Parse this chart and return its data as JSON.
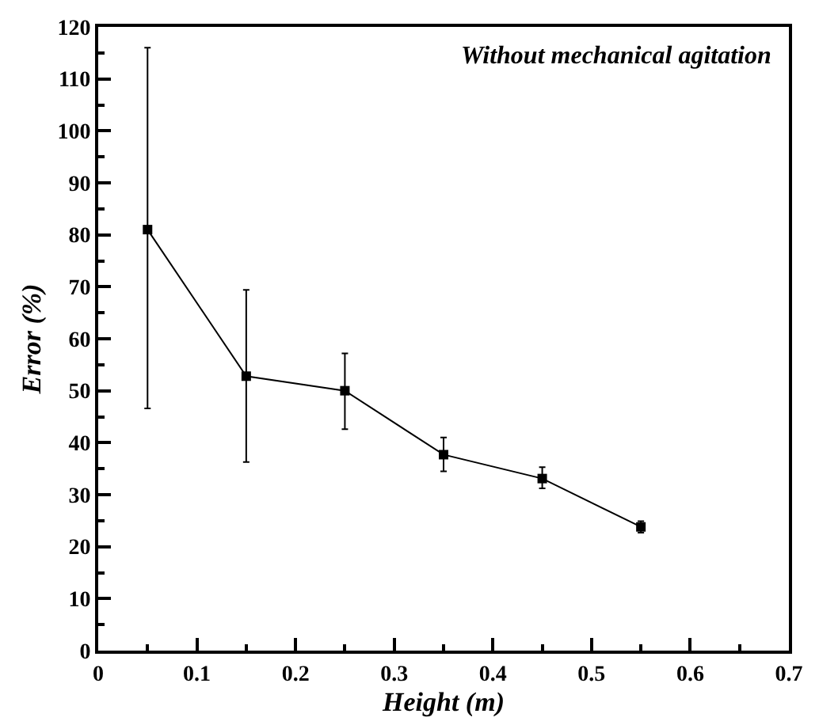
{
  "chart_data": {
    "type": "line",
    "xlabel": "Height (m)",
    "ylabel": "Error (%)",
    "annotations": [
      "Without mechanical agitation"
    ],
    "x": [
      0.05,
      0.15,
      0.25,
      0.35,
      0.45,
      0.55
    ],
    "series": [
      {
        "color": "#000000",
        "values": [
          81,
          52.8,
          50,
          37.7,
          33.1,
          23.8
        ],
        "errors": [
          [
            46.6,
            116
          ],
          [
            36.3,
            69.4
          ],
          [
            42.6,
            57.2
          ],
          [
            34.5,
            41
          ],
          [
            31.2,
            35.3
          ],
          [
            22.7,
            24.9
          ]
        ]
      }
    ],
    "xlim": [
      0,
      0.7
    ],
    "xticks": [
      0,
      0.1,
      0.2,
      0.3,
      0.4,
      0.5,
      0.6,
      0.7
    ],
    "ylim": [
      0,
      120
    ],
    "yticks": [
      0,
      10,
      20,
      30,
      40,
      50,
      60,
      70,
      80,
      90,
      100,
      110,
      120
    ],
    "marker": "square",
    "line_style": "solid"
  }
}
